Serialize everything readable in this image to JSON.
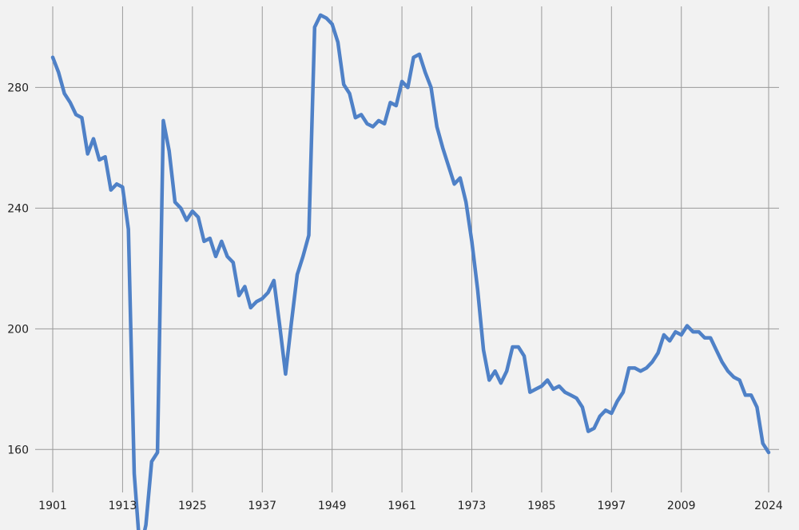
{
  "chart_data": {
    "type": "line",
    "title": "",
    "xlabel": "",
    "ylabel": "",
    "color": "#4f81c7",
    "background": "#f2f2f2",
    "grid": true,
    "xlim": [
      1901,
      2024
    ],
    "ylim": [
      150,
      309
    ],
    "x_ticks": [
      1901,
      1913,
      1925,
      1937,
      1949,
      1961,
      1973,
      1985,
      1997,
      2009,
      2024
    ],
    "y_ticks": [
      160,
      200,
      240,
      280
    ],
    "series": [
      {
        "name": "",
        "x": [
          1901,
          1902,
          1903,
          1904,
          1905,
          1906,
          1907,
          1908,
          1909,
          1910,
          1911,
          1912,
          1913,
          1914,
          1915,
          1916,
          1917,
          1918,
          1919,
          1920,
          1921,
          1922,
          1923,
          1924,
          1925,
          1926,
          1927,
          1928,
          1929,
          1930,
          1931,
          1932,
          1933,
          1934,
          1935,
          1936,
          1937,
          1938,
          1939,
          1940,
          1941,
          1942,
          1943,
          1944,
          1945,
          1946,
          1947,
          1948,
          1949,
          1950,
          1951,
          1952,
          1953,
          1954,
          1955,
          1956,
          1957,
          1958,
          1959,
          1960,
          1961,
          1962,
          1963,
          1964,
          1965,
          1966,
          1967,
          1968,
          1969,
          1970,
          1971,
          1972,
          1973,
          1974,
          1975,
          1976,
          1977,
          1978,
          1979,
          1980,
          1981,
          1982,
          1983,
          1984,
          1985,
          1986,
          1987,
          1988,
          1989,
          1990,
          1991,
          1992,
          1993,
          1994,
          1995,
          1996,
          1997,
          1998,
          1999,
          2000,
          2001,
          2002,
          2003,
          2004,
          2005,
          2006,
          2007,
          2008,
          2009,
          2010,
          2011,
          2012,
          2013,
          2014,
          2015,
          2016,
          2017,
          2018,
          2019,
          2020,
          2021,
          2022,
          2023,
          2024
        ],
        "y": [
          290,
          285,
          278,
          275,
          271,
          270,
          258,
          263,
          256,
          257,
          246,
          248,
          247,
          233,
          152,
          126,
          135,
          156,
          159,
          269,
          259,
          242,
          240,
          236,
          239,
          237,
          229,
          230,
          224,
          229,
          224,
          222,
          211,
          214,
          207,
          209,
          210,
          212,
          216,
          201,
          185,
          202,
          218,
          224,
          231,
          300,
          304,
          303,
          301,
          295,
          281,
          278,
          270,
          271,
          268,
          267,
          269,
          268,
          275,
          274,
          282,
          280,
          290,
          291,
          285,
          280,
          267,
          260,
          254,
          248,
          250,
          242,
          229,
          213,
          193,
          183,
          186,
          182,
          186,
          194,
          194,
          191,
          179,
          180,
          181,
          183,
          180,
          181,
          179,
          178,
          177,
          174,
          166,
          167,
          171,
          173,
          172,
          176,
          179,
          187,
          187,
          186,
          187,
          189,
          192,
          198,
          196,
          199,
          198,
          201,
          199,
          199,
          197,
          197,
          193,
          189,
          186,
          184,
          183,
          178,
          178,
          174,
          162,
          159
        ]
      }
    ]
  }
}
